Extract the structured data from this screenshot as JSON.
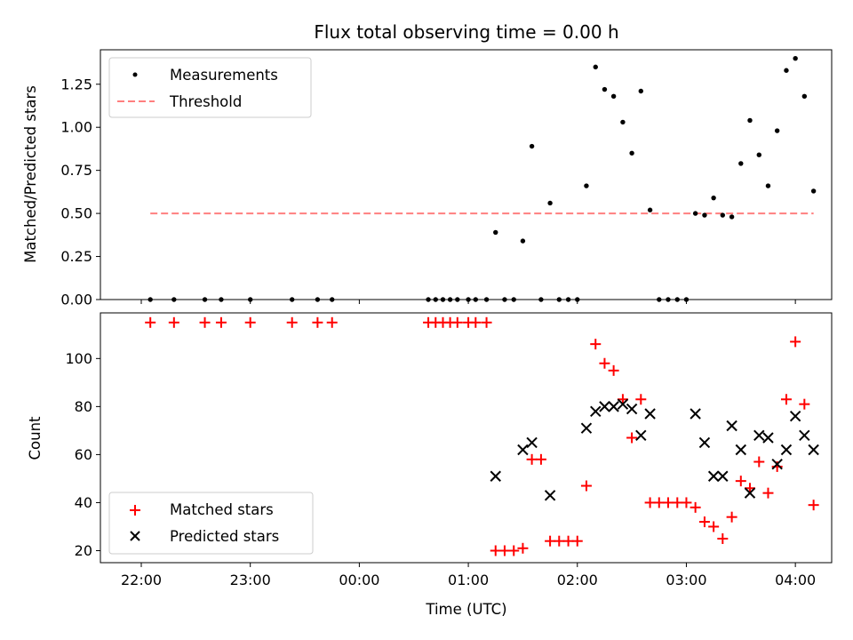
{
  "chart_data": [
    {
      "type": "scatter",
      "title": "Flux total observing time = 0.00 h",
      "xlabel": "",
      "ylabel": "Matched/Predicted stars",
      "ylim": [
        0,
        1.45
      ],
      "yticks": [
        0,
        0.25,
        0.5,
        0.75,
        1.0,
        1.25
      ],
      "ytick_labels": [
        "0.00",
        "0.25",
        "0.50",
        "0.75",
        "1.00",
        "1.25"
      ],
      "xlim_hours": [
        21.625,
        28.333
      ],
      "legend_position": "top-left",
      "threshold": {
        "name": "Threshold",
        "value": 0.5,
        "x_start": 22.083,
        "x_end": 28.167,
        "color": "#ff7f7f"
      },
      "series": [
        {
          "name": "Measurements",
          "marker": "dot",
          "color": "#000000",
          "points": [
            [
              22.083,
              0
            ],
            [
              22.3,
              0
            ],
            [
              22.583,
              0
            ],
            [
              22.733,
              0
            ],
            [
              23.0,
              0
            ],
            [
              23.383,
              0
            ],
            [
              23.617,
              0
            ],
            [
              23.75,
              0
            ],
            [
              24.633,
              0
            ],
            [
              24.7,
              0
            ],
            [
              24.767,
              0
            ],
            [
              24.833,
              0
            ],
            [
              24.9,
              0
            ],
            [
              25.0,
              0
            ],
            [
              25.067,
              0
            ],
            [
              25.167,
              0
            ],
            [
              25.25,
              0.39
            ],
            [
              25.333,
              0
            ],
            [
              25.417,
              0
            ],
            [
              25.5,
              0.34
            ],
            [
              25.583,
              0.89
            ],
            [
              25.667,
              0
            ],
            [
              25.75,
              0.56
            ],
            [
              25.833,
              0
            ],
            [
              25.917,
              0
            ],
            [
              26.0,
              0
            ],
            [
              26.083,
              0.66
            ],
            [
              26.167,
              1.35
            ],
            [
              26.25,
              1.22
            ],
            [
              26.333,
              1.18
            ],
            [
              26.417,
              1.03
            ],
            [
              26.5,
              0.85
            ],
            [
              26.583,
              1.21
            ],
            [
              26.667,
              0.52
            ],
            [
              26.75,
              0
            ],
            [
              26.833,
              0
            ],
            [
              26.917,
              0
            ],
            [
              27.0,
              0
            ],
            [
              27.083,
              0.5
            ],
            [
              27.167,
              0.49
            ],
            [
              27.25,
              0.59
            ],
            [
              27.333,
              0.49
            ],
            [
              27.417,
              0.48
            ],
            [
              27.5,
              0.79
            ],
            [
              27.583,
              1.04
            ],
            [
              27.667,
              0.84
            ],
            [
              27.75,
              0.66
            ],
            [
              27.833,
              0.98
            ],
            [
              27.917,
              1.33
            ],
            [
              28.0,
              1.4
            ],
            [
              28.083,
              1.18
            ],
            [
              28.167,
              0.63
            ]
          ]
        }
      ]
    },
    {
      "type": "scatter",
      "title": "",
      "xlabel": "Time (UTC)",
      "ylabel": "Count",
      "ylim": [
        15,
        119
      ],
      "yticks": [
        20,
        40,
        60,
        80,
        100
      ],
      "ytick_labels": [
        "20",
        "40",
        "60",
        "80",
        "100"
      ],
      "xlim_hours": [
        21.625,
        28.333
      ],
      "xticks_hours": [
        22,
        23,
        24,
        25,
        26,
        27,
        28
      ],
      "xtick_labels": [
        "22:00",
        "23:00",
        "00:00",
        "01:00",
        "02:00",
        "03:00",
        "04:00"
      ],
      "legend_position": "bottom-left",
      "series": [
        {
          "name": "Matched stars",
          "marker": "plus",
          "color": "#ff0000",
          "points": [
            [
              22.083,
              115
            ],
            [
              22.3,
              115
            ],
            [
              22.583,
              115
            ],
            [
              22.733,
              115
            ],
            [
              23.0,
              115
            ],
            [
              23.383,
              115
            ],
            [
              23.617,
              115
            ],
            [
              23.75,
              115
            ],
            [
              24.633,
              115
            ],
            [
              24.7,
              115
            ],
            [
              24.767,
              115
            ],
            [
              24.833,
              115
            ],
            [
              24.9,
              115
            ],
            [
              25.0,
              115
            ],
            [
              25.067,
              115
            ],
            [
              25.167,
              115
            ],
            [
              25.25,
              20
            ],
            [
              25.333,
              20
            ],
            [
              25.417,
              20
            ],
            [
              25.5,
              21
            ],
            [
              25.583,
              58
            ],
            [
              25.667,
              58
            ],
            [
              25.75,
              24
            ],
            [
              25.833,
              24
            ],
            [
              25.917,
              24
            ],
            [
              26.0,
              24
            ],
            [
              26.083,
              47
            ],
            [
              26.167,
              106
            ],
            [
              26.25,
              98
            ],
            [
              26.333,
              95
            ],
            [
              26.417,
              83
            ],
            [
              26.5,
              67
            ],
            [
              26.583,
              83
            ],
            [
              26.667,
              40
            ],
            [
              26.75,
              40
            ],
            [
              26.833,
              40
            ],
            [
              26.917,
              40
            ],
            [
              27.0,
              40
            ],
            [
              27.083,
              38
            ],
            [
              27.167,
              32
            ],
            [
              27.25,
              30
            ],
            [
              27.333,
              25
            ],
            [
              27.417,
              34
            ],
            [
              27.5,
              49
            ],
            [
              27.583,
              46
            ],
            [
              27.667,
              57
            ],
            [
              27.75,
              44
            ],
            [
              27.833,
              55
            ],
            [
              27.917,
              83
            ],
            [
              28.0,
              107
            ],
            [
              28.083,
              81
            ],
            [
              28.167,
              39
            ]
          ]
        },
        {
          "name": "Predicted stars",
          "marker": "x",
          "color": "#000000",
          "points": [
            [
              25.25,
              51
            ],
            [
              25.5,
              62
            ],
            [
              25.583,
              65
            ],
            [
              25.75,
              43
            ],
            [
              26.083,
              71
            ],
            [
              26.167,
              78
            ],
            [
              26.25,
              80
            ],
            [
              26.333,
              80
            ],
            [
              26.417,
              81
            ],
            [
              26.5,
              79
            ],
            [
              26.583,
              68
            ],
            [
              26.667,
              77
            ],
            [
              27.083,
              77
            ],
            [
              27.167,
              65
            ],
            [
              27.25,
              51
            ],
            [
              27.333,
              51
            ],
            [
              27.417,
              72
            ],
            [
              27.5,
              62
            ],
            [
              27.583,
              44
            ],
            [
              27.667,
              68
            ],
            [
              27.75,
              67
            ],
            [
              27.833,
              56
            ],
            [
              27.917,
              62
            ],
            [
              28.0,
              76
            ],
            [
              28.083,
              68
            ],
            [
              28.167,
              62
            ]
          ]
        }
      ]
    }
  ]
}
